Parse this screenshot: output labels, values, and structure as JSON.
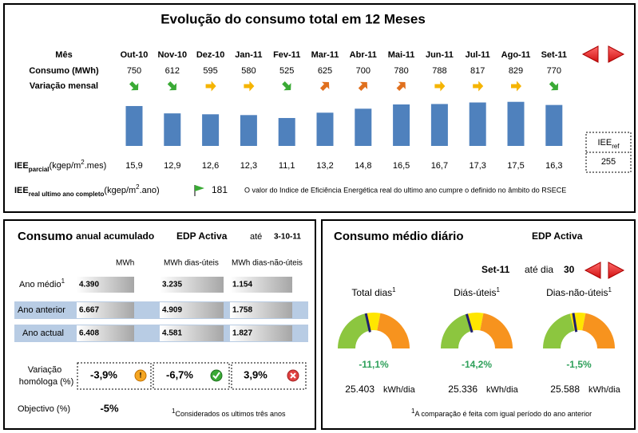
{
  "chart_data": {
    "type": "bar",
    "title": "Evolução do consumo total em 12 Meses",
    "category_label": "Mês",
    "value_label": "Consumo (MWh)",
    "categories": [
      "Out-10",
      "Nov-10",
      "Dez-10",
      "Jan-11",
      "Fev-11",
      "Mar-11",
      "Abr-11",
      "Mai-11",
      "Jun-11",
      "Jul-11",
      "Ago-11",
      "Set-11"
    ],
    "values": [
      750,
      612,
      595,
      580,
      525,
      625,
      700,
      780,
      788,
      817,
      829,
      770
    ],
    "color": "#4f81bd"
  },
  "variacao_mensal": {
    "label": "Variação mensal",
    "arrows": [
      "down",
      "down",
      "right",
      "right",
      "down",
      "up",
      "up",
      "up",
      "right",
      "right",
      "right",
      "down"
    ],
    "colors": {
      "down": "#3aaa35",
      "right": "#f5b400",
      "up": "#e0701e"
    }
  },
  "iee_parcial": {
    "label": "IEE",
    "sub": "parcial",
    "unit": "(kgep/m",
    "unit_sup": "2",
    "unit_end": ".mes)",
    "values": [
      "15,9",
      "12,9",
      "12,6",
      "12,3",
      "11,1",
      "13,2",
      "14,8",
      "16,5",
      "16,7",
      "17,3",
      "17,5",
      "16,3"
    ]
  },
  "iee_ref": {
    "label": "IEE",
    "sub": "ref",
    "value": "255"
  },
  "iee_real": {
    "label": "IEE",
    "sub": "real ultimo ano completo",
    "unit": "(kgep/m",
    "unit_sup": "2",
    "unit_end": ".ano)",
    "value": "181",
    "note": "O valor do Indice de Eficiência Energética real do ultimo ano cumpre o definido no âmbito do RSECE"
  },
  "anual": {
    "title": "Consumo",
    "title_small": "anual acumulado",
    "site": "EDP Activa",
    "ate": "até",
    "date": "3-10-11",
    "headers": [
      "MWh",
      "MWh dias-úteis",
      "MWh dias-não-úteis"
    ],
    "rows": [
      {
        "label": "Ano médio",
        "sup": "1",
        "values": [
          "4.390",
          "3.235",
          "1.154"
        ]
      },
      {
        "label": "Ano anterior",
        "values": [
          "6.667",
          "4.909",
          "1.758"
        ]
      },
      {
        "label": "Ano actual",
        "values": [
          "6.408",
          "4.581",
          "1.827"
        ]
      }
    ],
    "variacao": {
      "label_lines": [
        "Variação",
        "homóloga (%)"
      ],
      "values": [
        "-3,9%",
        "-6,7%",
        "3,9%"
      ]
    },
    "objectivo": {
      "label": "Objectivo (%)",
      "value": "-5%"
    },
    "footnote": {
      "sup": "1",
      "text": "Considerados os ultimos três anos"
    }
  },
  "diario": {
    "title": "Consumo médio diário",
    "site": "EDP Activa",
    "month": "Set-11",
    "ate": "até dia",
    "day": "30",
    "gauges": [
      {
        "label": "Total dias",
        "sup": "1",
        "change": "-11,1%",
        "value": "25.403",
        "unit": "kWh/dia"
      },
      {
        "label": "Diás-úteis",
        "sup": "1",
        "change": "-14,2%",
        "value": "25.336",
        "unit": "kWh/dia"
      },
      {
        "label": "Dias-não-úteis",
        "sup": "1",
        "change": "-1,5%",
        "value": "25.588",
        "unit": "kWh/dia"
      }
    ],
    "footnote": {
      "sup": "1",
      "text": "A comparação é feita com igual período do ano anterior"
    }
  }
}
